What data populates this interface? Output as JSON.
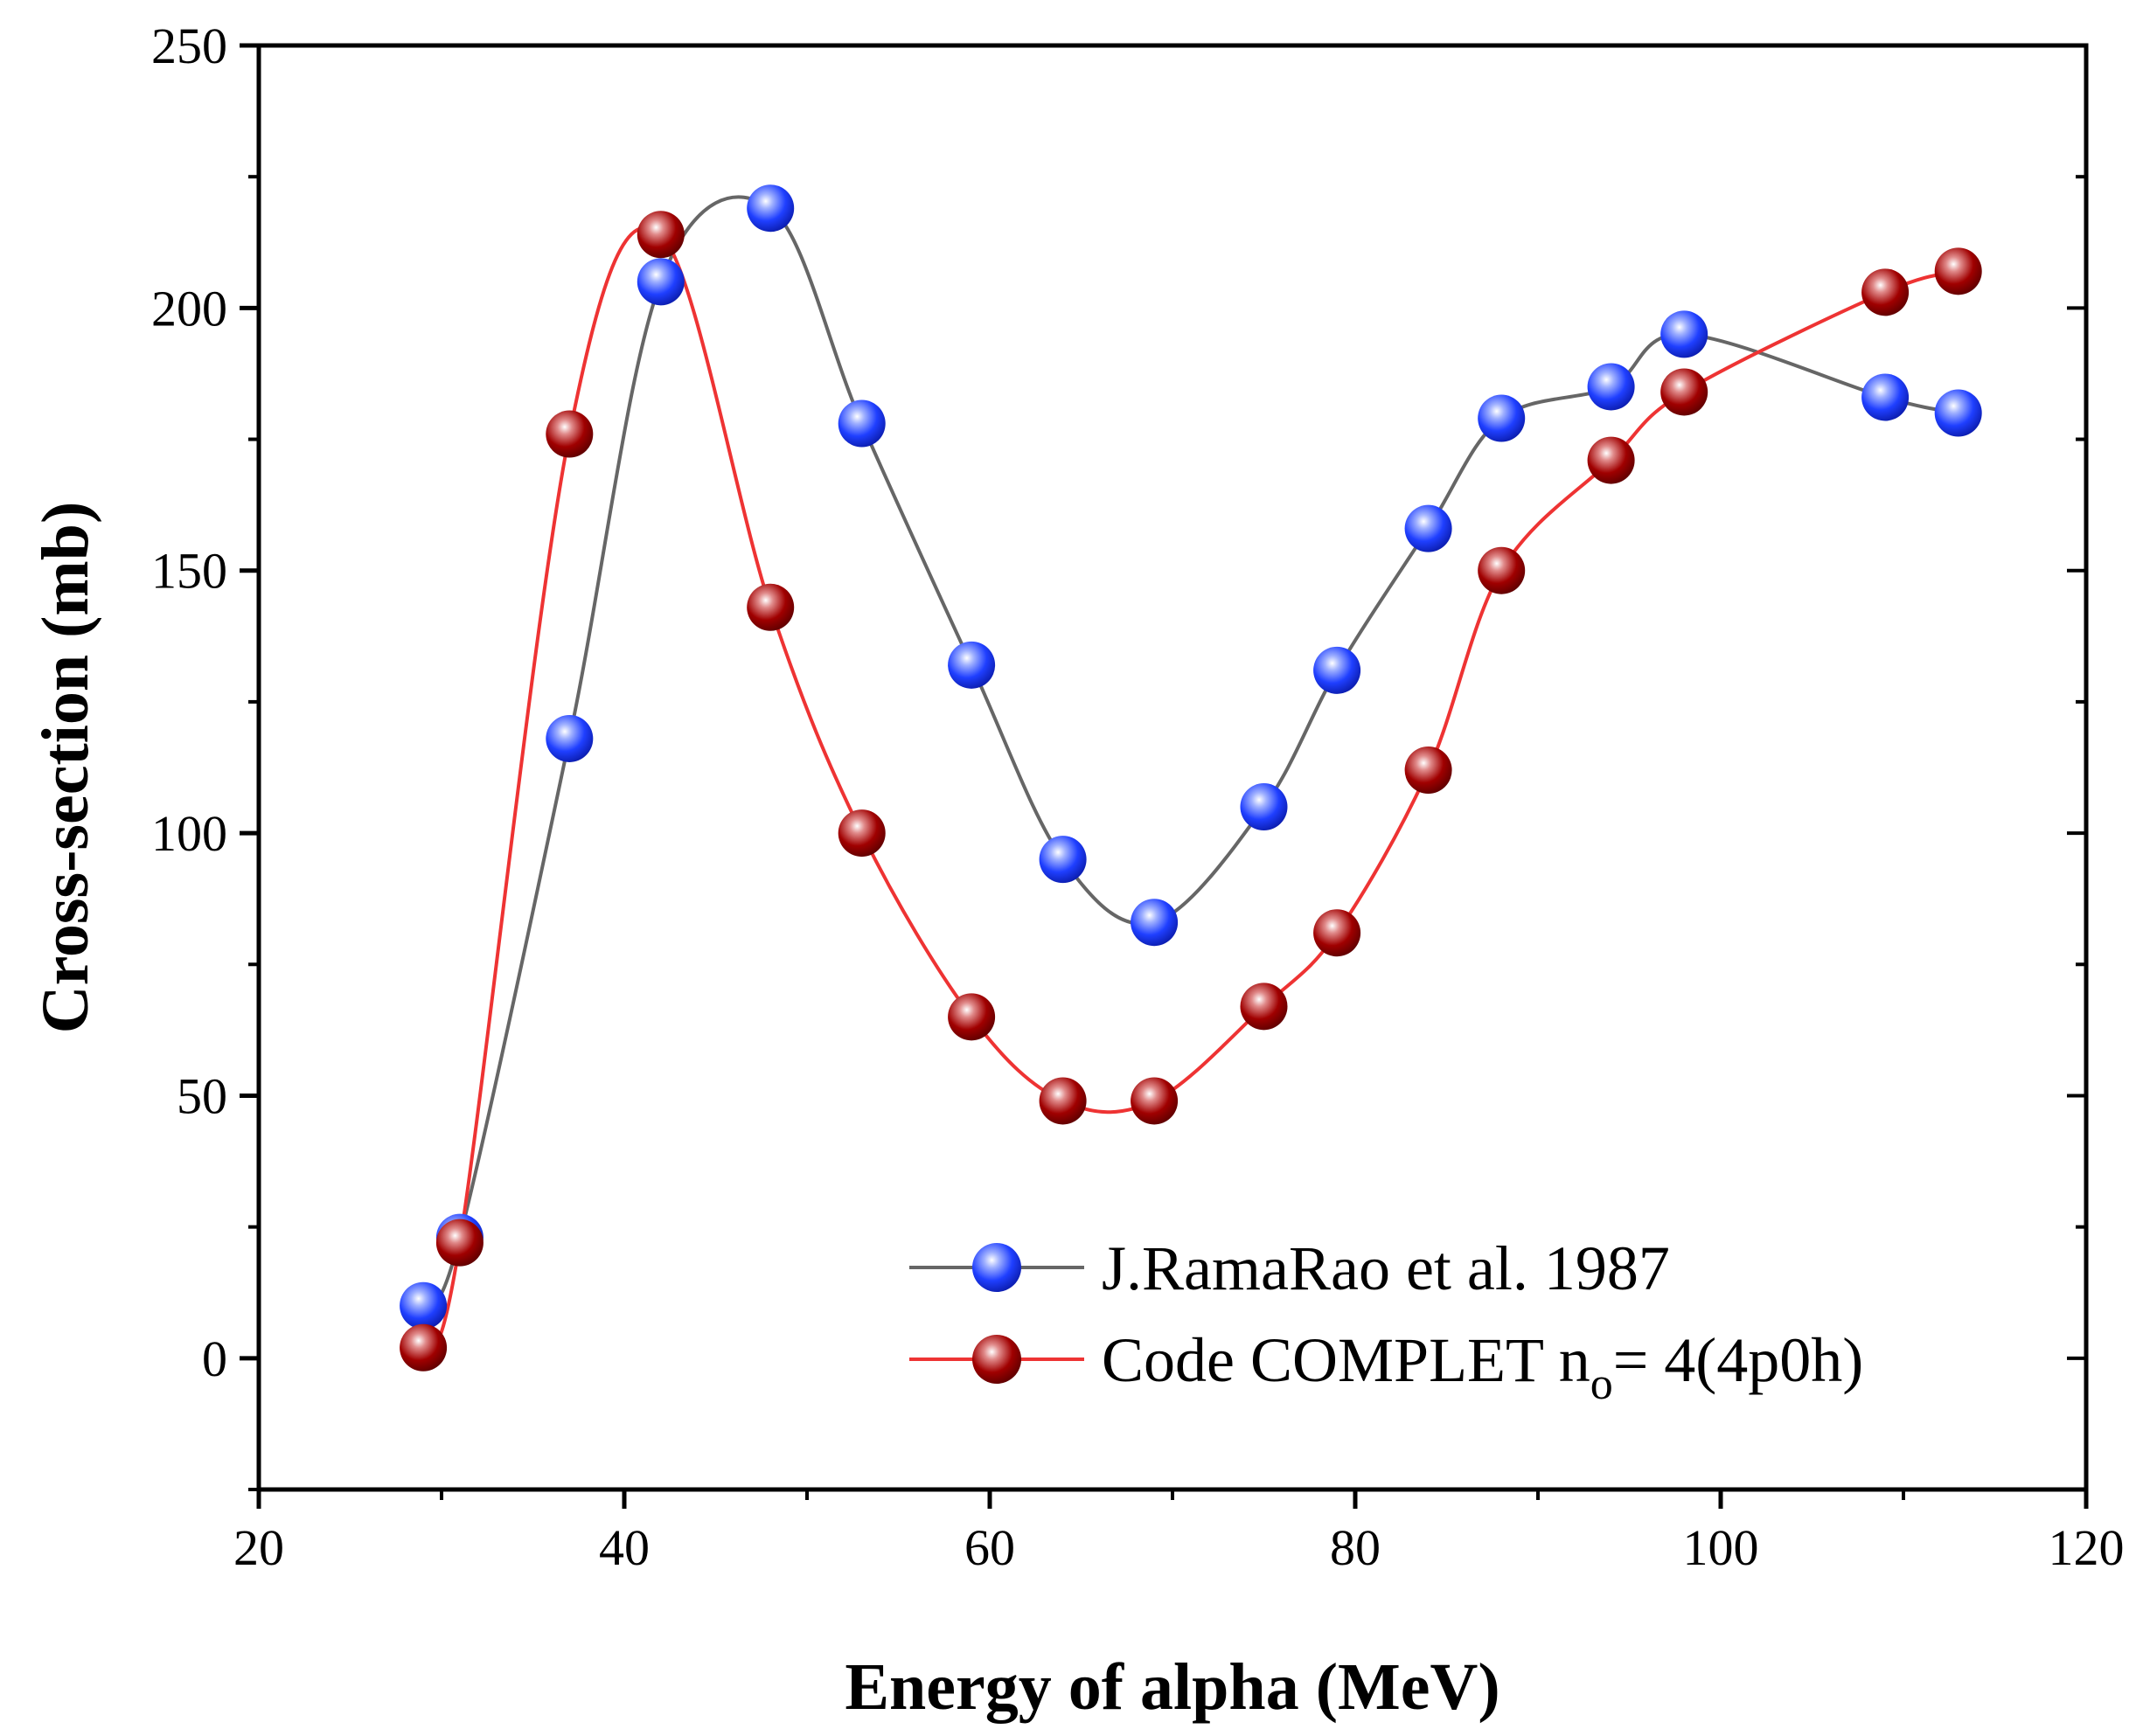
{
  "chart_data": {
    "type": "line",
    "title": "",
    "xlabel": "Energy of alpha (MeV)",
    "ylabel": "Cross-section (mb)",
    "xlim": [
      20,
      120
    ],
    "ylim": [
      -25,
      250
    ],
    "xticks": [
      "20",
      "40",
      "60",
      "80",
      "100",
      "120"
    ],
    "yticks": [
      "0",
      "50",
      "100",
      "150",
      "200",
      "250"
    ],
    "grid": false,
    "legend_position": "bottom-right",
    "series": [
      {
        "name": "J.RamaRao et al. 1987",
        "line_color": "#666666",
        "marker_color": "#1f3fff",
        "x": [
          29,
          31,
          37,
          42,
          48,
          53,
          59,
          64,
          69,
          75,
          79,
          84,
          88,
          94,
          98,
          109,
          113
        ],
        "y": [
          10,
          23,
          118,
          205,
          219,
          178,
          132,
          95,
          83,
          105,
          131,
          158,
          179,
          185,
          195,
          183,
          180
        ]
      },
      {
        "name": "Code COMPLET n",
        "name_subscript": "o",
        "name_suffix": "= 4(4p0h)",
        "line_color": "#ee3333",
        "marker_color": "#a00000",
        "x": [
          29,
          31,
          37,
          42,
          48,
          53,
          59,
          64,
          69,
          75,
          79,
          84,
          88,
          94,
          98,
          109,
          113
        ],
        "y": [
          2,
          22,
          176,
          214,
          143,
          100,
          65,
          49,
          49,
          67,
          81,
          112,
          150,
          171,
          184,
          203,
          207
        ]
      }
    ]
  }
}
